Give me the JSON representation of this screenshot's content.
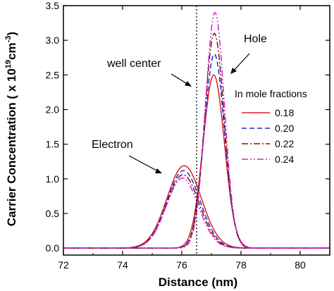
{
  "chart_data": {
    "type": "line",
    "xlabel": "Distance (nm)",
    "ylabel_main": "Carrier Concentration ( x 10",
    "ylabel_exp": "19",
    "ylabel_unit": "cm",
    "ylabel_unit_exp": "-3",
    "ylabel_close": ")",
    "xlim": [
      72,
      81
    ],
    "ylim": [
      -0.1,
      3.5
    ],
    "xticks": [
      72,
      74,
      76,
      78,
      80
    ],
    "yticks": [
      0.0,
      0.5,
      1.0,
      1.5,
      2.0,
      2.5,
      3.0,
      3.5
    ],
    "ytick_labels": [
      "0.0",
      "0.5",
      "1.0",
      "1.5",
      "2.0",
      "2.5",
      "3.0",
      "3.5"
    ],
    "well_center": {
      "x": 76.5,
      "label": "well center"
    },
    "annotations": {
      "hole": "Hole",
      "electron": "Electron"
    },
    "legend": {
      "title": "In mole fractions",
      "position": "right"
    },
    "series": [
      {
        "name": "0.18",
        "color": "#e02020",
        "dash": "solid",
        "electron": {
          "center": 76.08,
          "peak": 1.19,
          "sigma": 0.58
        },
        "hole": {
          "center": 77.08,
          "peak": 2.5,
          "sigma": 0.36
        }
      },
      {
        "name": "0.20",
        "color": "#1a2fd0",
        "dash": "dashed",
        "electron": {
          "center": 76.06,
          "peak": 1.12,
          "sigma": 0.56
        },
        "hole": {
          "center": 77.1,
          "peak": 2.8,
          "sigma": 0.34
        }
      },
      {
        "name": "0.22",
        "color": "#6b1a1a",
        "dash": "dashdot",
        "electron": {
          "center": 76.04,
          "peak": 1.06,
          "sigma": 0.55
        },
        "hole": {
          "center": 77.1,
          "peak": 3.1,
          "sigma": 0.33
        }
      },
      {
        "name": "0.24",
        "color": "#e020c8",
        "dash": "dashdotdot",
        "electron": {
          "center": 76.02,
          "peak": 1.01,
          "sigma": 0.54
        },
        "hole": {
          "center": 77.12,
          "peak": 3.4,
          "sigma": 0.32
        }
      }
    ]
  }
}
